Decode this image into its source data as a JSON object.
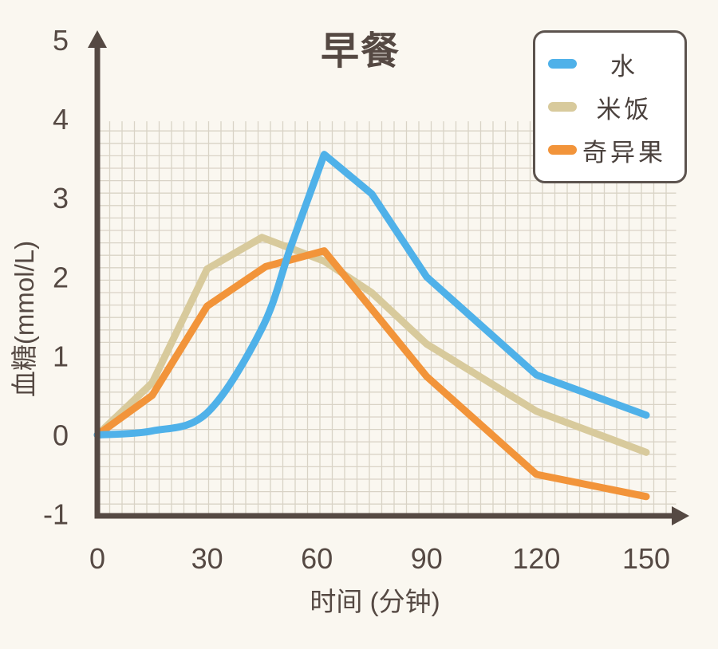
{
  "chart_data": {
    "type": "line",
    "title": "早餐",
    "xlabel": "时间 (分钟)",
    "ylabel": "血糖(mmol/L)",
    "x_ticks": [
      0,
      30,
      60,
      90,
      120,
      150
    ],
    "y_ticks": [
      5,
      4,
      3,
      2,
      1,
      0,
      -1
    ],
    "xlim": [
      0,
      158
    ],
    "ylim": [
      -1,
      5
    ],
    "grid": true,
    "grid_top_value": 4,
    "legend_position": "top-right",
    "series": [
      {
        "id": "water",
        "label": "水",
        "color": "#4FB1E9",
        "smooth_until": 5,
        "points": [
          [
            0,
            0
          ],
          [
            15,
            0.05
          ],
          [
            30,
            0.28
          ],
          [
            45,
            1.35
          ],
          [
            53,
            2.4
          ],
          [
            62,
            3.55
          ],
          [
            75,
            3.05
          ],
          [
            90,
            2.0
          ],
          [
            120,
            0.76
          ],
          [
            150,
            0.25
          ]
        ]
      },
      {
        "id": "rice",
        "label": "米饭",
        "color": "#D8CA9C",
        "smooth_until": 0,
        "points": [
          [
            0,
            0
          ],
          [
            15,
            0.66
          ],
          [
            30,
            2.1
          ],
          [
            45,
            2.5
          ],
          [
            62,
            2.2
          ],
          [
            75,
            1.8
          ],
          [
            90,
            1.15
          ],
          [
            120,
            0.3
          ],
          [
            150,
            -0.22
          ]
        ]
      },
      {
        "id": "kiwi",
        "label": "奇异果",
        "color": "#F2943A",
        "smooth_until": 0,
        "points": [
          [
            0,
            0
          ],
          [
            15,
            0.5
          ],
          [
            30,
            1.63
          ],
          [
            46,
            2.13
          ],
          [
            62,
            2.33
          ],
          [
            90,
            0.74
          ],
          [
            120,
            -0.5
          ],
          [
            150,
            -0.78
          ]
        ]
      }
    ]
  },
  "colors": {
    "background": "#FAF7F0",
    "grid": "#D9D3C6",
    "axis": "#554943",
    "text": "#554943",
    "legend_border": "#5C534E",
    "legend_background": "#FFFFFF",
    "legend_text": "#4A413D"
  }
}
